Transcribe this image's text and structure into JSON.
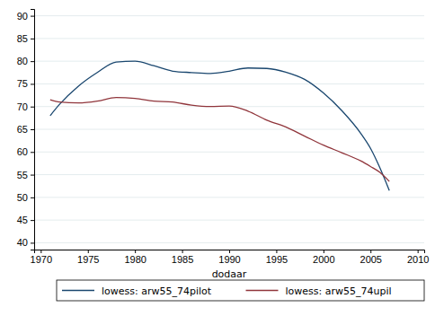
{
  "chart_data": {
    "type": "line",
    "x_label": "dodaar",
    "x": [
      1971,
      1972,
      1974,
      1976,
      1978,
      1980,
      1982,
      1984,
      1986,
      1988,
      1990,
      1992,
      1994,
      1996,
      1998,
      2000,
      2002,
      2004,
      2005,
      2006,
      2007
    ],
    "series": [
      {
        "name": "lowess: arw55_74pilot",
        "color": "#1a476f",
        "values": [
          68,
          70.5,
          74.5,
          77.5,
          79.8,
          80,
          79,
          77.8,
          77.5,
          77.3,
          77.8,
          78.5,
          78.4,
          77.6,
          76,
          73,
          69,
          64,
          60.8,
          56.5,
          51.5
        ]
      },
      {
        "name": "lowess: arw55_74upil",
        "color": "#90353b",
        "values": [
          71.5,
          71,
          70.8,
          71.2,
          72,
          71.8,
          71.2,
          71,
          70.3,
          70,
          70.1,
          69,
          67,
          65.5,
          63.5,
          61.5,
          59.8,
          58,
          56.8,
          55.5,
          53.5
        ]
      }
    ],
    "xlim": [
      1969.3,
      2010.7
    ],
    "xticks": [
      1970,
      1975,
      1980,
      1985,
      1990,
      1995,
      2000,
      2005,
      2010
    ],
    "ylim": [
      38.5,
      91.5
    ],
    "yticks": [
      40,
      45,
      50,
      55,
      60,
      65,
      70,
      75,
      80,
      85,
      90
    ],
    "grid": true,
    "legend": "bottom"
  }
}
